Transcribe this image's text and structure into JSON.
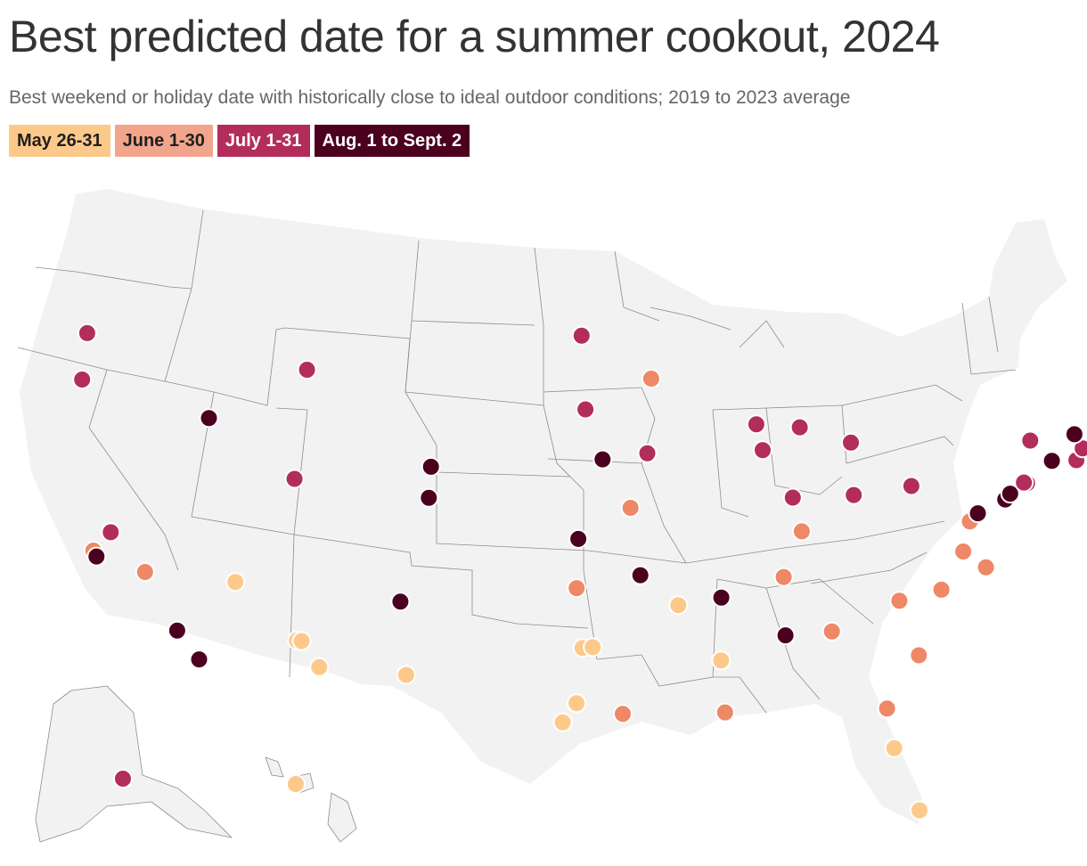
{
  "title": "Best predicted date for a summer cookout, 2024",
  "subtitle": "Best weekend or holiday date with historically close to ideal outdoor conditions; 2019 to 2023 average",
  "legend": [
    {
      "key": "may",
      "label": "May 26-31",
      "color": "#fdc98a",
      "text_color": "#1f1f1f"
    },
    {
      "key": "june",
      "label": "June 1-30",
      "color": "#f2a58c",
      "text_color": "#1f1f1f"
    },
    {
      "key": "july",
      "label": "July 1-31",
      "color": "#b32d5b",
      "text_color": "#ffffff"
    },
    {
      "key": "aug",
      "label": "Aug. 1 to Sept. 2",
      "color": "#4b0020",
      "text_color": "#ffffff"
    }
  ],
  "marker_colors": {
    "may": "#fdc98a",
    "june": "#ee8866",
    "july": "#b32d5b",
    "aug": "#4b0020"
  },
  "cities": [
    {
      "lon": -122.33,
      "lat": 47.61,
      "period": "july"
    },
    {
      "lon": -122.68,
      "lat": 45.52,
      "period": "july"
    },
    {
      "lon": -116.2,
      "lat": 43.62,
      "period": "aug"
    },
    {
      "lon": -111.04,
      "lat": 45.68,
      "period": "july"
    },
    {
      "lon": -121.49,
      "lat": 38.58,
      "period": "july"
    },
    {
      "lon": -122.42,
      "lat": 37.77,
      "period": "june"
    },
    {
      "lon": -122.27,
      "lat": 37.5,
      "period": "aug"
    },
    {
      "lon": -119.79,
      "lat": 36.74,
      "period": "june"
    },
    {
      "lon": -118.24,
      "lat": 34.05,
      "period": "aug"
    },
    {
      "lon": -117.16,
      "lat": 32.72,
      "period": "aug"
    },
    {
      "lon": -115.14,
      "lat": 36.17,
      "period": "may"
    },
    {
      "lon": -112.07,
      "lat": 33.45,
      "period": "may"
    },
    {
      "lon": -111.83,
      "lat": 33.42,
      "period": "may"
    },
    {
      "lon": -110.97,
      "lat": 32.22,
      "period": "may"
    },
    {
      "lon": -111.89,
      "lat": 40.76,
      "period": "july"
    },
    {
      "lon": -104.82,
      "lat": 41.14,
      "period": "aug"
    },
    {
      "lon": -104.99,
      "lat": 39.74,
      "period": "aug"
    },
    {
      "lon": -106.65,
      "lat": 35.08,
      "period": "aug"
    },
    {
      "lon": -106.49,
      "lat": 31.76,
      "period": "may"
    },
    {
      "lon": -96.79,
      "lat": 46.88,
      "period": "july"
    },
    {
      "lon": -96.73,
      "lat": 43.54,
      "period": "july"
    },
    {
      "lon": -95.94,
      "lat": 41.26,
      "period": "aug"
    },
    {
      "lon": -97.34,
      "lat": 37.69,
      "period": "aug"
    },
    {
      "lon": -97.52,
      "lat": 35.47,
      "period": "june"
    },
    {
      "lon": -97.33,
      "lat": 32.76,
      "period": "may"
    },
    {
      "lon": -96.8,
      "lat": 32.78,
      "period": "may"
    },
    {
      "lon": -97.74,
      "lat": 30.27,
      "period": "may"
    },
    {
      "lon": -98.49,
      "lat": 29.42,
      "period": "may"
    },
    {
      "lon": -95.37,
      "lat": 29.76,
      "period": "june"
    },
    {
      "lon": -93.27,
      "lat": 44.98,
      "period": "june"
    },
    {
      "lon": -93.61,
      "lat": 41.59,
      "period": "july"
    },
    {
      "lon": -94.58,
      "lat": 39.1,
      "period": "june"
    },
    {
      "lon": -94.2,
      "lat": 36.06,
      "period": "aug"
    },
    {
      "lon": -92.29,
      "lat": 34.75,
      "period": "may"
    },
    {
      "lon": -90.05,
      "lat": 35.15,
      "period": "aug"
    },
    {
      "lon": -90.18,
      "lat": 32.3,
      "period": "may"
    },
    {
      "lon": -90.07,
      "lat": 29.95,
      "period": "june"
    },
    {
      "lon": -87.91,
      "lat": 43.04,
      "period": "july"
    },
    {
      "lon": -87.63,
      "lat": 41.88,
      "period": "july"
    },
    {
      "lon": -86.16,
      "lat": 39.77,
      "period": "july"
    },
    {
      "lon": -85.76,
      "lat": 38.25,
      "period": "june"
    },
    {
      "lon": -86.78,
      "lat": 36.16,
      "period": "june"
    },
    {
      "lon": -86.8,
      "lat": 33.52,
      "period": "aug"
    },
    {
      "lon": -84.39,
      "lat": 33.75,
      "period": "june"
    },
    {
      "lon": -85.67,
      "lat": 42.96,
      "period": "july"
    },
    {
      "lon": -83.05,
      "lat": 42.33,
      "period": "july"
    },
    {
      "lon": -83.0,
      "lat": 39.96,
      "period": "july"
    },
    {
      "lon": -80.0,
      "lat": 40.44,
      "period": "july"
    },
    {
      "lon": -81.68,
      "lat": 30.33,
      "period": "june"
    },
    {
      "lon": -81.38,
      "lat": 28.54,
      "period": "may"
    },
    {
      "lon": -80.19,
      "lat": 25.76,
      "period": "may"
    },
    {
      "lon": -80.84,
      "lat": 35.23,
      "period": "june"
    },
    {
      "lon": -78.64,
      "lat": 35.78,
      "period": "june"
    },
    {
      "lon": -79.93,
      "lat": 32.78,
      "period": "june"
    },
    {
      "lon": -77.44,
      "lat": 37.54,
      "period": "june"
    },
    {
      "lon": -76.29,
      "lat": 36.85,
      "period": "june"
    },
    {
      "lon": -77.04,
      "lat": 38.91,
      "period": "june"
    },
    {
      "lon": -76.61,
      "lat": 39.29,
      "period": "aug"
    },
    {
      "lon": -75.17,
      "lat": 39.95,
      "period": "aug"
    },
    {
      "lon": -74.9,
      "lat": 40.22,
      "period": "aug"
    },
    {
      "lon": -74.01,
      "lat": 40.71,
      "period": "july"
    },
    {
      "lon": -74.17,
      "lat": 40.74,
      "period": "july"
    },
    {
      "lon": -72.68,
      "lat": 41.76,
      "period": "aug"
    },
    {
      "lon": -73.76,
      "lat": 42.65,
      "period": "july"
    },
    {
      "lon": -71.41,
      "lat": 41.82,
      "period": "july"
    },
    {
      "lon": -71.06,
      "lat": 42.36,
      "period": "july"
    },
    {
      "lon": -71.46,
      "lat": 42.99,
      "period": "aug"
    },
    {
      "lon": -70.26,
      "lat": 43.66,
      "period": "july"
    }
  ],
  "alaska": [
    {
      "city": "Anchorage",
      "period": "july"
    }
  ],
  "hawaii": [
    {
      "city": "Honolulu",
      "period": "may"
    }
  ]
}
